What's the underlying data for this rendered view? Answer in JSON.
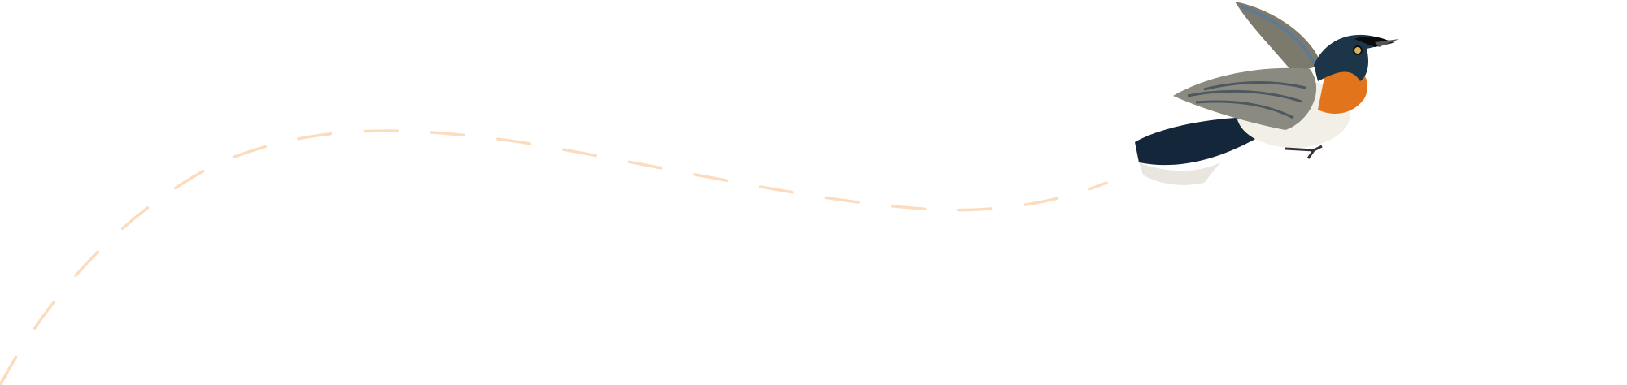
{
  "colors": {
    "background": "#ffffff",
    "flight_path": "#fcdcbd",
    "bird_throat": "#e2741b",
    "bird_back": "#1d3548",
    "bird_wing": "#8a8a80",
    "bird_belly": "#f2efe6"
  },
  "illustration": {
    "subject": "bird-icon",
    "path_style": "dashed"
  }
}
